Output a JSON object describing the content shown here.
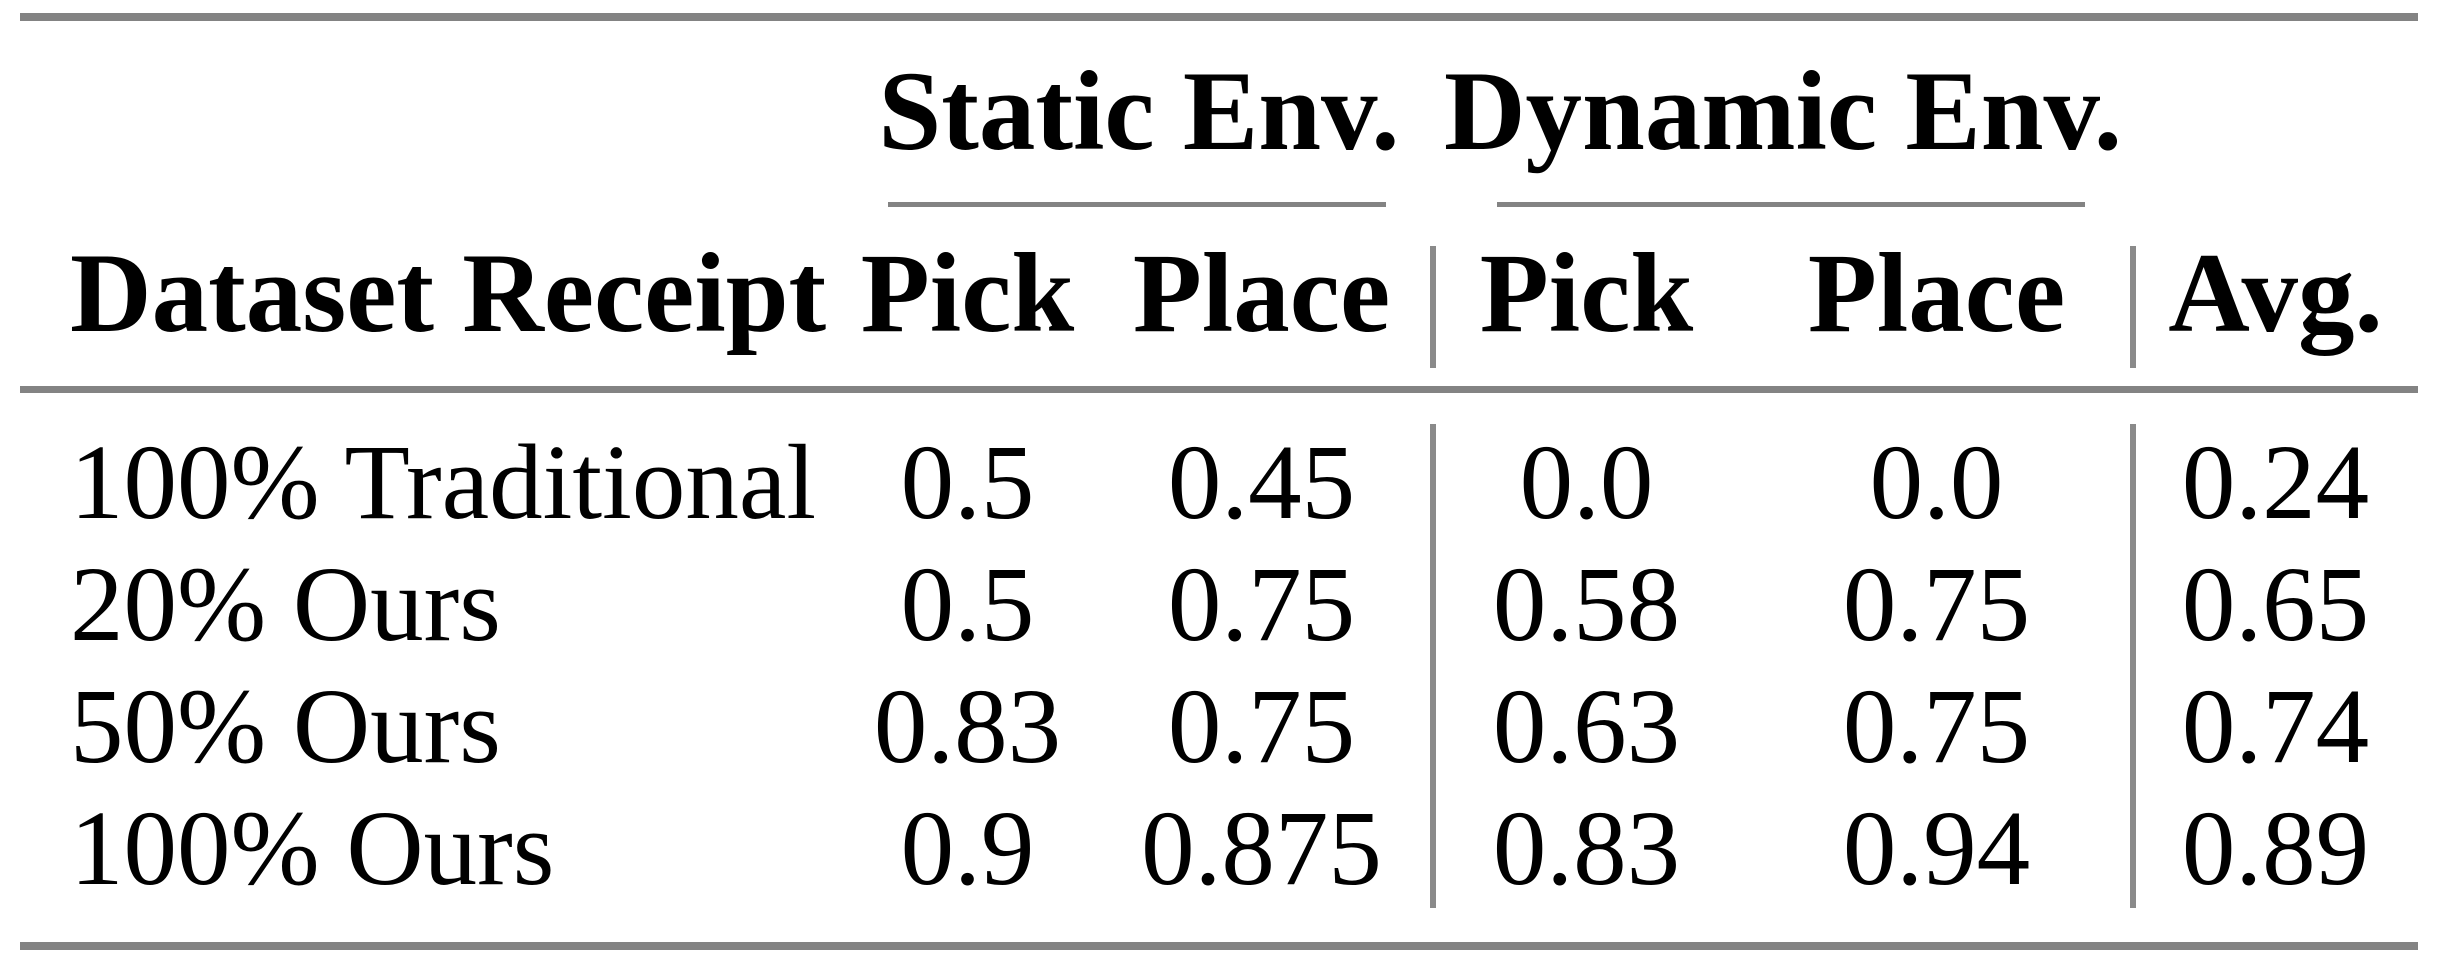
{
  "table": {
    "corner_header": "Dataset Receipt",
    "groups": [
      {
        "label": "Static Env."
      },
      {
        "label": "Dynamic Env."
      }
    ],
    "sub_headers": {
      "static_pick": "Pick",
      "static_place": "Place",
      "dynamic_pick": "Pick",
      "dynamic_place": "Place",
      "avg": "Avg."
    },
    "rows": [
      {
        "cells": [
          "100% Traditional",
          "0.5",
          "0.45",
          "0.0",
          "0.0",
          "0.24"
        ]
      },
      {
        "cells": [
          "20% Ours",
          "0.5",
          "0.75",
          "0.58",
          "0.75",
          "0.65"
        ]
      },
      {
        "cells": [
          "50% Ours",
          "0.83",
          "0.75",
          "0.63",
          "0.75",
          "0.74"
        ]
      },
      {
        "cells": [
          "100% Ours",
          "0.9",
          "0.875",
          "0.83",
          "0.94",
          "0.89"
        ]
      }
    ]
  },
  "chart_data": {
    "type": "table",
    "title": "",
    "column_groups": [
      "",
      "Static Env.",
      "Static Env.",
      "Dynamic Env.",
      "Dynamic Env.",
      ""
    ],
    "columns": [
      "Dataset Receipt",
      "Pick",
      "Place",
      "Pick",
      "Place",
      "Avg."
    ],
    "rows": [
      [
        "100% Traditional",
        0.5,
        0.45,
        0.0,
        0.0,
        0.24
      ],
      [
        "20% Ours",
        0.5,
        0.75,
        0.58,
        0.75,
        0.65
      ],
      [
        "50% Ours",
        0.83,
        0.75,
        0.63,
        0.75,
        0.74
      ],
      [
        "100% Ours",
        0.9,
        0.875,
        0.83,
        0.94,
        0.89
      ]
    ]
  },
  "colors": {
    "rule_gray": "#838383",
    "text": "#000000",
    "background": "#ffffff"
  }
}
